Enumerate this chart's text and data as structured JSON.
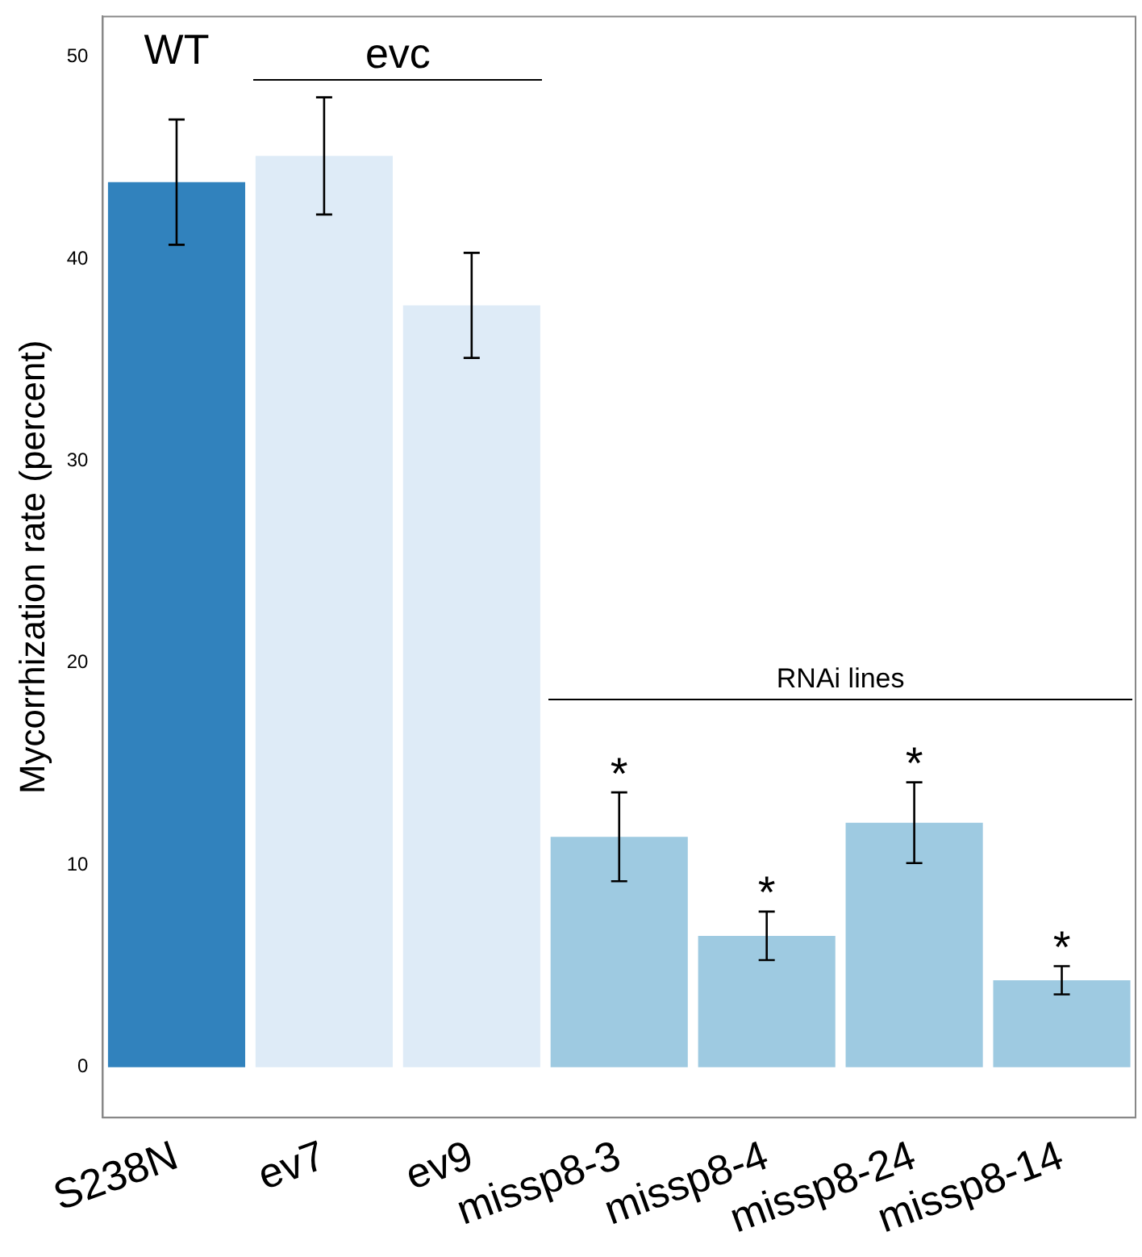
{
  "chart_data": {
    "type": "bar",
    "ylabel": "Mycorrhization rate (percent)",
    "categories": [
      "S238N",
      "ev7",
      "ev9",
      "missp8-3",
      "missp8-4",
      "missp8-24",
      "missp8-14"
    ],
    "values": [
      43.8,
      45.1,
      37.7,
      11.4,
      6.5,
      12.1,
      4.3
    ],
    "colors": [
      "#3182bd",
      "#deebf7",
      "#deebf7",
      "#9ecae1",
      "#9ecae1",
      "#9ecae1",
      "#9ecae1"
    ],
    "errors": [
      3.1,
      2.9,
      2.6,
      2.2,
      1.2,
      2.0,
      0.7
    ],
    "ylim": [
      -2.5,
      52
    ],
    "yticks": [
      0,
      10,
      20,
      30,
      40,
      50
    ],
    "grid": false,
    "annotations": [
      "WT",
      "evc",
      "RNAi lines",
      "*",
      "*",
      "*",
      "*"
    ]
  }
}
